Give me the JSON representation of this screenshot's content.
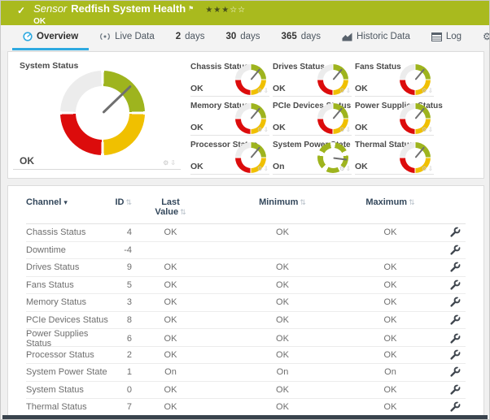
{
  "header": {
    "kind": "Sensor",
    "title": "Redfish System Health",
    "status": "OK",
    "priority": "3 of 5 stars",
    "stars_filled_glyphs": "★★★",
    "stars_empty_glyphs": "☆☆"
  },
  "glyphs": {
    "check-icon": "✓",
    "flag-icon": "⚑",
    "gear-icon": "⚙",
    "download-icon": "⇩",
    "sort-icon": "⇅",
    "sorted-desc-icon": "▾"
  },
  "tabs": [
    {
      "id": "overview",
      "icon": "gauge-icon",
      "prefix": "",
      "label": "Overview",
      "active": true
    },
    {
      "id": "live-data",
      "icon": "broadcast-icon",
      "prefix": "",
      "label": "Live Data",
      "active": false
    },
    {
      "id": "2-days",
      "icon": "",
      "prefix": "2",
      "label": "days",
      "active": false
    },
    {
      "id": "30-days",
      "icon": "",
      "prefix": "30",
      "label": "days",
      "active": false
    },
    {
      "id": "365-days",
      "icon": "",
      "prefix": "365",
      "label": "days",
      "active": false
    },
    {
      "id": "historic-data",
      "icon": "chart-icon",
      "prefix": "",
      "label": "Historic Data",
      "active": false
    },
    {
      "id": "log",
      "icon": "log-icon",
      "prefix": "",
      "label": "Log",
      "active": false
    },
    {
      "id": "settings",
      "icon": "gear-icon",
      "prefix": "",
      "label": "Settings",
      "active": false
    }
  ],
  "overview": {
    "main_gauge": {
      "title": "System Status",
      "value": "OK",
      "style": "status",
      "needle_deg": 46
    },
    "gauges": [
      {
        "title": "Chassis Status",
        "value": "OK",
        "style": "status",
        "needle_deg": 40
      },
      {
        "title": "Drives Status",
        "value": "OK",
        "style": "status",
        "needle_deg": 40
      },
      {
        "title": "Fans Status",
        "value": "OK",
        "style": "status",
        "needle_deg": 40
      },
      {
        "title": "Memory Status",
        "value": "OK",
        "style": "status",
        "needle_deg": 40
      },
      {
        "title": "PCIe Devices Status",
        "value": "OK",
        "style": "status",
        "needle_deg": 40
      },
      {
        "title": "Power Supplies Status",
        "value": "OK",
        "style": "status",
        "needle_deg": 40
      },
      {
        "title": "Processor Status",
        "value": "OK",
        "style": "status",
        "needle_deg": 40
      },
      {
        "title": "System Power State",
        "value": "On",
        "style": "power",
        "needle_deg": 97
      },
      {
        "title": "Thermal Status",
        "value": "OK",
        "style": "status",
        "needle_deg": 40
      }
    ]
  },
  "table": {
    "columns": [
      {
        "key": "channel",
        "label": "Channel",
        "align": "left",
        "sorted": true,
        "two_line": false
      },
      {
        "key": "id",
        "label": "ID",
        "align": "right",
        "sorted": false,
        "two_line": false
      },
      {
        "key": "last",
        "label": "Last Value",
        "align": "center",
        "sorted": false,
        "two_line": true
      },
      {
        "key": "min",
        "label": "Minimum",
        "align": "center",
        "sorted": false,
        "two_line": false
      },
      {
        "key": "max",
        "label": "Maximum",
        "align": "center",
        "sorted": false,
        "two_line": false
      }
    ],
    "rows": [
      {
        "channel": "Chassis Status",
        "id": "4",
        "last": "OK",
        "min": "OK",
        "max": "OK"
      },
      {
        "channel": "Downtime",
        "id": "-4",
        "last": "",
        "min": "",
        "max": ""
      },
      {
        "channel": "Drives Status",
        "id": "9",
        "last": "OK",
        "min": "OK",
        "max": "OK"
      },
      {
        "channel": "Fans Status",
        "id": "5",
        "last": "OK",
        "min": "OK",
        "max": "OK"
      },
      {
        "channel": "Memory Status",
        "id": "3",
        "last": "OK",
        "min": "OK",
        "max": "OK"
      },
      {
        "channel": "PCIe Devices Status",
        "id": "8",
        "last": "OK",
        "min": "OK",
        "max": "OK"
      },
      {
        "channel": "Power Supplies Status",
        "id": "6",
        "last": "OK",
        "min": "OK",
        "max": "OK"
      },
      {
        "channel": "Processor Status",
        "id": "2",
        "last": "OK",
        "min": "OK",
        "max": "OK"
      },
      {
        "channel": "System Power State",
        "id": "1",
        "last": "On",
        "min": "On",
        "max": "On"
      },
      {
        "channel": "System Status",
        "id": "0",
        "last": "OK",
        "min": "OK",
        "max": "OK"
      },
      {
        "channel": "Thermal Status",
        "id": "7",
        "last": "OK",
        "min": "OK",
        "max": "OK"
      }
    ]
  },
  "colors": {
    "banner_green": "#a9ba1e",
    "accent_blue": "#2ea9e0",
    "gauge_green": "#9eb41e",
    "gauge_yellow": "#f0c000",
    "gauge_red": "#dc0c0c",
    "gauge_gray": "#ececec",
    "needle_gray": "#6f6f6f",
    "header_navy": "#33475b",
    "footer_bar": "#39434d"
  }
}
